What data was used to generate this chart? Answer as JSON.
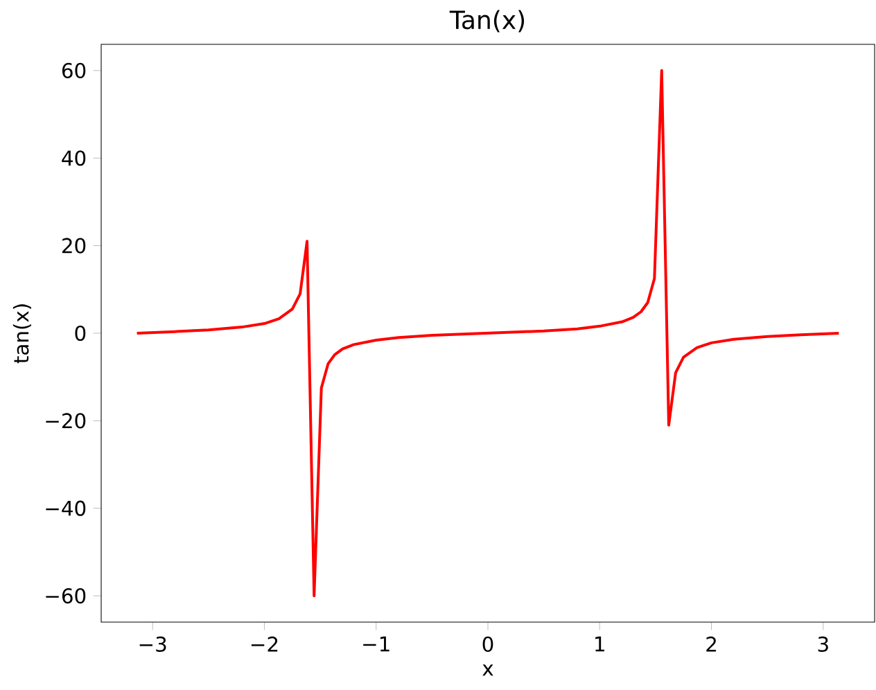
{
  "chart_data": {
    "type": "line",
    "title": "Tan(x)",
    "xlabel": "x",
    "ylabel": "tan(x)",
    "xlim": [
      -3.46,
      3.46
    ],
    "ylim": [
      -66,
      66
    ],
    "xticks": [
      {
        "value": -3,
        "label": "−3"
      },
      {
        "value": -2,
        "label": "−2"
      },
      {
        "value": -1,
        "label": "−1"
      },
      0,
      1,
      2,
      3
    ],
    "yticks": [
      {
        "value": -60,
        "label": "−60"
      },
      {
        "value": -40,
        "label": "−40"
      },
      {
        "value": -20,
        "label": "−20"
      },
      0,
      20,
      40,
      60
    ],
    "series": [
      {
        "color": "#ff0000",
        "x": [
          -3.14,
          -2.8,
          -2.5,
          -2.2,
          -2.0,
          -1.87,
          -1.75,
          -1.68,
          -1.618,
          -1.555,
          -1.49,
          -1.43,
          -1.37,
          -1.3,
          -1.2,
          -1.0,
          -0.8,
          -0.5,
          0,
          0.5,
          0.8,
          1.0,
          1.2,
          1.3,
          1.37,
          1.43,
          1.49,
          1.555,
          1.618,
          1.68,
          1.75,
          1.87,
          2.0,
          2.2,
          2.5,
          2.8,
          3.14
        ],
        "values": [
          0,
          0.36,
          0.75,
          1.4,
          2.2,
          3.3,
          5.5,
          9,
          21,
          -60,
          -12.5,
          -7,
          -4.9,
          -3.6,
          -2.6,
          -1.6,
          -1,
          -0.5,
          0,
          0.5,
          1,
          1.6,
          2.6,
          3.6,
          4.9,
          7,
          12.5,
          60,
          -21,
          -9,
          -5.5,
          -3.3,
          -2.2,
          -1.4,
          -0.75,
          -0.36,
          0
        ]
      }
    ]
  }
}
